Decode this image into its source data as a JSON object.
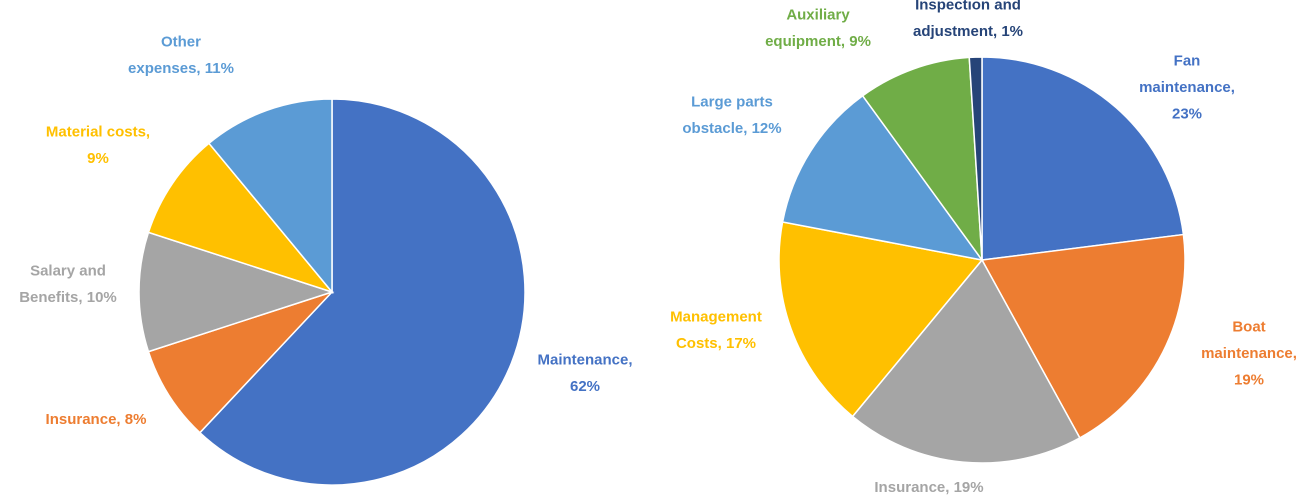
{
  "chart_data": [
    {
      "type": "pie",
      "values": [
        62,
        8,
        10,
        9,
        11
      ],
      "value_labels": [
        [
          "Maintenance,",
          "62%"
        ],
        [
          "Insurance, 8%"
        ],
        [
          "Salary and",
          "Benefits, 10%"
        ],
        [
          "Material costs,",
          "9%"
        ],
        [
          "Other",
          "expenses, 11%"
        ]
      ],
      "colors": [
        "#4472c4",
        "#ed7d31",
        "#a5a5a5",
        "#ffc000",
        "#5b9bd5"
      ]
    },
    {
      "type": "pie",
      "values": [
        23,
        19,
        19,
        17,
        12,
        9,
        1
      ],
      "value_labels": [
        [
          "Fan",
          "maintenance,",
          "23%"
        ],
        [
          "Boat",
          "maintenance,",
          "19%"
        ],
        [
          "Insurance, 19%"
        ],
        [
          "Management",
          "Costs, 17%"
        ],
        [
          "Large parts",
          "obstacle, 12%"
        ],
        [
          "Auxiliary",
          "equipment, 9%"
        ],
        [
          "Inspection and",
          "adjustment, 1%"
        ]
      ],
      "colors": [
        "#4472c4",
        "#ed7d31",
        "#a5a5a5",
        "#ffc000",
        "#5b9bd5",
        "#70ad47",
        "#264478"
      ]
    }
  ]
}
